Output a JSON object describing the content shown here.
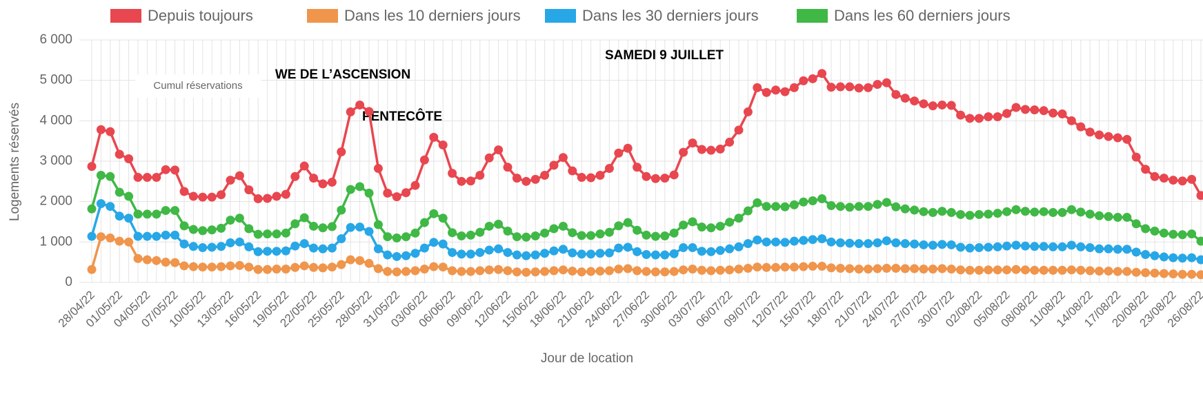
{
  "chart_data": {
    "type": "line",
    "x_label": "Jour de location",
    "y_label": "Logements réservés",
    "annotations": [
      "Cumul réservations",
      "WE DE L’ASCENSION",
      "PENTECÔTE",
      "SAMEDI 9 JUILLET"
    ],
    "categories": [
      "28/04/22",
      null,
      null,
      "01/05/22",
      null,
      null,
      "04/05/22",
      null,
      null,
      "07/05/22",
      null,
      null,
      "10/05/22",
      null,
      null,
      "13/05/22",
      null,
      null,
      "16/05/22",
      null,
      null,
      "19/05/22",
      null,
      null,
      "22/05/22",
      null,
      null,
      "25/05/22",
      null,
      null,
      "28/05/22",
      null,
      null,
      "31/05/22",
      null,
      null,
      "03/06/22",
      null,
      null,
      "06/06/22",
      null,
      null,
      "09/06/22",
      null,
      null,
      "12/06/22",
      null,
      null,
      "15/06/22",
      null,
      null,
      "18/06/22",
      null,
      null,
      "21/06/22",
      null,
      null,
      "24/06/22",
      null,
      null,
      "27/06/22",
      null,
      null,
      "30/06/22",
      null,
      null,
      "03/07/22",
      null,
      null,
      "06/07/22",
      null,
      null,
      "09/07/22",
      null,
      null,
      "12/07/22",
      null,
      null,
      "15/07/22",
      null,
      null,
      "18/07/22",
      null,
      null,
      "21/07/22",
      null,
      null,
      "24/07/22",
      null,
      null,
      "27/07/22",
      null,
      null,
      "30/07/22",
      null,
      null,
      "02/08/22",
      null,
      null,
      "05/08/22",
      null,
      null,
      "08/08/22",
      null,
      null,
      "11/08/22",
      null,
      null,
      "14/08/22",
      null,
      null,
      "17/08/22",
      null,
      null,
      "20/08/22",
      null,
      null,
      "23/08/22",
      null,
      null,
      "26/08/22"
    ],
    "series": [
      {
        "name": "Depuis toujours",
        "color": "#e8474f",
        "values": [
          2870,
          3780,
          3730,
          3170,
          3060,
          2600,
          2600,
          2600,
          2790,
          2780,
          2250,
          2130,
          2110,
          2110,
          2170,
          2530,
          2640,
          2290,
          2070,
          2080,
          2130,
          2180,
          2620,
          2880,
          2580,
          2440,
          2480,
          3230,
          4220,
          4390,
          4230,
          2820,
          2210,
          2120,
          2220,
          2400,
          3030,
          3590,
          3400,
          2700,
          2500,
          2510,
          2650,
          3080,
          3280,
          2850,
          2580,
          2500,
          2550,
          2650,
          2900,
          3090,
          2760,
          2600,
          2590,
          2650,
          2820,
          3200,
          3320,
          2850,
          2620,
          2570,
          2580,
          2660,
          3220,
          3450,
          3290,
          3270,
          3300,
          3470,
          3770,
          4220,
          4820,
          4700,
          4760,
          4720,
          4820,
          4990,
          5040,
          5170,
          4830,
          4840,
          4840,
          4810,
          4820,
          4900,
          4940,
          4650,
          4560,
          4490,
          4420,
          4370,
          4390,
          4380,
          4140,
          4060,
          4060,
          4100,
          4100,
          4180,
          4330,
          4280,
          4270,
          4250,
          4190,
          4170,
          4000,
          3850,
          3720,
          3650,
          3610,
          3580,
          3540,
          3100,
          2800,
          2620,
          2580,
          2530,
          2510,
          2550,
          2150
        ]
      },
      {
        "name": "Dans les 10 derniers jours",
        "color": "#f0954c",
        "values": [
          320,
          1130,
          1100,
          1020,
          1000,
          590,
          560,
          540,
          500,
          490,
          410,
          390,
          380,
          380,
          390,
          410,
          420,
          380,
          320,
          320,
          330,
          330,
          370,
          410,
          370,
          360,
          380,
          440,
          560,
          540,
          470,
          340,
          270,
          260,
          270,
          290,
          330,
          390,
          380,
          290,
          270,
          270,
          290,
          310,
          320,
          290,
          260,
          250,
          260,
          270,
          290,
          310,
          280,
          260,
          270,
          280,
          290,
          330,
          340,
          290,
          270,
          260,
          260,
          270,
          310,
          330,
          300,
          290,
          300,
          310,
          330,
          350,
          380,
          370,
          370,
          380,
          380,
          390,
          400,
          400,
          360,
          350,
          340,
          330,
          330,
          340,
          350,
          350,
          340,
          340,
          330,
          330,
          340,
          330,
          310,
          300,
          300,
          310,
          310,
          310,
          320,
          310,
          300,
          300,
          300,
          300,
          310,
          300,
          290,
          280,
          280,
          270,
          270,
          250,
          240,
          230,
          220,
          210,
          200,
          200,
          190
        ]
      },
      {
        "name": "Dans les 30 derniers jours",
        "color": "#28a7e6",
        "values": [
          1140,
          1950,
          1880,
          1640,
          1590,
          1140,
          1140,
          1140,
          1170,
          1170,
          950,
          890,
          860,
          870,
          890,
          980,
          1000,
          880,
          760,
          770,
          770,
          780,
          900,
          960,
          850,
          830,
          850,
          1080,
          1360,
          1370,
          1260,
          830,
          680,
          640,
          660,
          720,
          850,
          990,
          950,
          740,
          700,
          700,
          740,
          800,
          830,
          740,
          680,
          660,
          680,
          720,
          780,
          820,
          730,
          700,
          700,
          720,
          730,
          850,
          870,
          760,
          690,
          680,
          680,
          710,
          860,
          860,
          770,
          760,
          790,
          830,
          880,
          960,
          1050,
          1000,
          1000,
          990,
          1020,
          1040,
          1060,
          1080,
          1000,
          980,
          970,
          960,
          960,
          980,
          1030,
          980,
          960,
          950,
          930,
          920,
          940,
          930,
          870,
          850,
          860,
          870,
          880,
          900,
          920,
          900,
          890,
          890,
          880,
          880,
          920,
          880,
          860,
          830,
          830,
          820,
          820,
          750,
          690,
          660,
          630,
          610,
          600,
          610,
          560
        ]
      },
      {
        "name": "Dans les 60 derniers jours",
        "color": "#40b846",
        "values": [
          1820,
          2650,
          2620,
          2230,
          2130,
          1690,
          1690,
          1690,
          1780,
          1780,
          1400,
          1310,
          1280,
          1300,
          1340,
          1540,
          1590,
          1330,
          1190,
          1200,
          1200,
          1220,
          1450,
          1600,
          1390,
          1350,
          1380,
          1790,
          2300,
          2370,
          2210,
          1430,
          1130,
          1100,
          1130,
          1220,
          1480,
          1700,
          1590,
          1230,
          1150,
          1170,
          1240,
          1390,
          1440,
          1270,
          1130,
          1120,
          1150,
          1220,
          1330,
          1390,
          1230,
          1160,
          1160,
          1200,
          1240,
          1400,
          1480,
          1290,
          1170,
          1140,
          1150,
          1220,
          1420,
          1500,
          1370,
          1350,
          1390,
          1490,
          1590,
          1770,
          1970,
          1880,
          1880,
          1870,
          1920,
          1990,
          2020,
          2070,
          1900,
          1880,
          1860,
          1880,
          1880,
          1930,
          1980,
          1870,
          1820,
          1790,
          1750,
          1730,
          1760,
          1730,
          1680,
          1660,
          1680,
          1690,
          1710,
          1750,
          1800,
          1760,
          1740,
          1750,
          1730,
          1730,
          1800,
          1740,
          1690,
          1650,
          1630,
          1610,
          1610,
          1450,
          1330,
          1270,
          1220,
          1190,
          1180,
          1200,
          1020
        ]
      }
    ],
    "ylim": [
      0,
      6000
    ],
    "yticks": [
      0,
      {
        "value": 1000,
        "label": "1 000"
      },
      {
        "value": 2000,
        "label": "2 000"
      },
      {
        "value": 3000,
        "label": "3 000"
      },
      {
        "value": 4000,
        "label": "4 000"
      },
      {
        "value": 5000,
        "label": "5 000"
      },
      {
        "value": 6000,
        "label": "6 000"
      }
    ],
    "grid": true,
    "legend": "top"
  }
}
